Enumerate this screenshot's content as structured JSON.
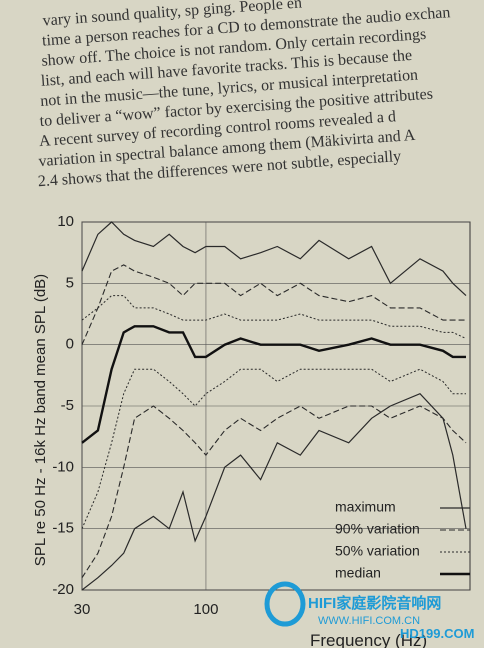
{
  "page": {
    "text_lines": [
      "vary in sound quality, sp ging. People en",
      "time a person reaches for a CD to demonstrate the audio exchan",
      "show off. The choice is not random. Only certain recordings",
      "list, and each will have favorite tracks. This is because the",
      "not in the music—the tune, lyrics, or musical interpretation",
      "to deliver a “wow” factor by exercising the positive attributes",
      "A recent survey of recording control rooms revealed a d",
      "variation in spectral balance among them (Mäkivirta and A",
      "2.4 shows that the differences were not subtle, especially"
    ],
    "watermark": [
      "HIFI家庭影院音响网",
      "WWW.HIFI.COM.CN",
      "HD199.COM"
    ]
  },
  "chart_data": {
    "type": "line",
    "y_label": "SPL re 50 Hz - 16k Hz band mean SPL (dB)",
    "x_label": "Frequency (Hz)",
    "x_scale": "log",
    "xlim": [
      30,
      1300
    ],
    "xticks": [
      30,
      100
    ],
    "ylim": [
      -20,
      10
    ],
    "yticks": [
      -20,
      -15,
      -10,
      -5,
      0,
      5,
      10
    ],
    "grid": true,
    "x": [
      30,
      35,
      40,
      45,
      50,
      60,
      70,
      80,
      90,
      100,
      120,
      140,
      170,
      200,
      250,
      300,
      400,
      500,
      600,
      800,
      1000,
      1100,
      1250
    ],
    "series": [
      {
        "name": "maximum",
        "color": "#2a2a2a",
        "dash": "none",
        "width": 1.2,
        "upper": [
          6,
          9,
          10,
          9,
          8.5,
          8,
          9,
          8,
          7.5,
          8,
          8,
          7,
          7.5,
          8,
          7,
          8.5,
          7,
          8,
          5,
          7,
          6,
          5,
          4
        ],
        "lower": [
          -20,
          -19,
          -18,
          -17,
          -15,
          -14,
          -15,
          -12,
          -16,
          -14,
          -10,
          -9,
          -11,
          -8,
          -9,
          -7,
          -8,
          -6,
          -5,
          -4,
          -6,
          -9,
          -15
        ]
      },
      {
        "name": "90% variation",
        "color": "#2a2a2a",
        "dash": "6 3",
        "width": 1.1,
        "upper": [
          0,
          3,
          6,
          6.5,
          6,
          5.5,
          5,
          4,
          5,
          5,
          5,
          4,
          5,
          4,
          5,
          4,
          3.5,
          4,
          3,
          3,
          2,
          2,
          2
        ],
        "lower": [
          -19,
          -17,
          -14,
          -10,
          -6,
          -5,
          -6,
          -7,
          -8,
          -9,
          -7,
          -6,
          -7,
          -6,
          -5,
          -6,
          -5,
          -5,
          -6,
          -5,
          -6,
          -7,
          -8
        ]
      },
      {
        "name": "50% variation",
        "color": "#2a2a2a",
        "dash": "2 2",
        "width": 1,
        "upper": [
          2,
          3,
          4,
          4,
          3,
          3,
          2.5,
          2,
          2,
          2,
          2.5,
          2,
          2,
          2,
          2.5,
          2,
          2,
          2,
          1.5,
          1.5,
          1,
          1,
          0.5
        ],
        "lower": [
          -15,
          -12,
          -8,
          -4,
          -2,
          -2,
          -3,
          -4,
          -5,
          -4,
          -3,
          -2,
          -2,
          -3,
          -2,
          -2,
          -2,
          -2,
          -3,
          -2,
          -3,
          -4,
          -4
        ]
      },
      {
        "name": "median",
        "color": "#111111",
        "dash": "none",
        "width": 2.4,
        "values": [
          -8,
          -7,
          -2,
          1,
          1.5,
          1.5,
          1,
          1,
          -1,
          -1,
          0,
          0.5,
          0,
          0,
          0,
          -0.5,
          0,
          0.5,
          0,
          0,
          -0.5,
          -1,
          -1
        ]
      }
    ]
  }
}
